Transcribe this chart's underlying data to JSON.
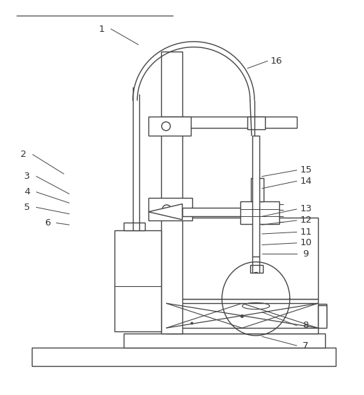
{
  "background_color": "#ffffff",
  "line_color": "#444444",
  "label_color": "#333333",
  "figsize": [
    5.15,
    5.59
  ],
  "dpi": 100,
  "label_data": [
    [
      1,
      0.28,
      0.963,
      0.38,
      0.92
    ],
    [
      2,
      0.065,
      0.618,
      0.175,
      0.565
    ],
    [
      3,
      0.075,
      0.558,
      0.19,
      0.51
    ],
    [
      4,
      0.075,
      0.515,
      0.19,
      0.485
    ],
    [
      5,
      0.075,
      0.473,
      0.19,
      0.455
    ],
    [
      6,
      0.13,
      0.43,
      0.19,
      0.425
    ],
    [
      7,
      0.84,
      0.093,
      0.72,
      0.118
    ],
    [
      8,
      0.84,
      0.148,
      0.72,
      0.185
    ],
    [
      9,
      0.84,
      0.345,
      0.72,
      0.345
    ],
    [
      10,
      0.84,
      0.375,
      0.72,
      0.37
    ],
    [
      11,
      0.84,
      0.405,
      0.72,
      0.4
    ],
    [
      12,
      0.84,
      0.437,
      0.72,
      0.425
    ],
    [
      13,
      0.84,
      0.468,
      0.72,
      0.448
    ],
    [
      14,
      0.84,
      0.545,
      0.72,
      0.525
    ],
    [
      15,
      0.84,
      0.575,
      0.72,
      0.558
    ],
    [
      16,
      0.76,
      0.875,
      0.68,
      0.855
    ]
  ]
}
